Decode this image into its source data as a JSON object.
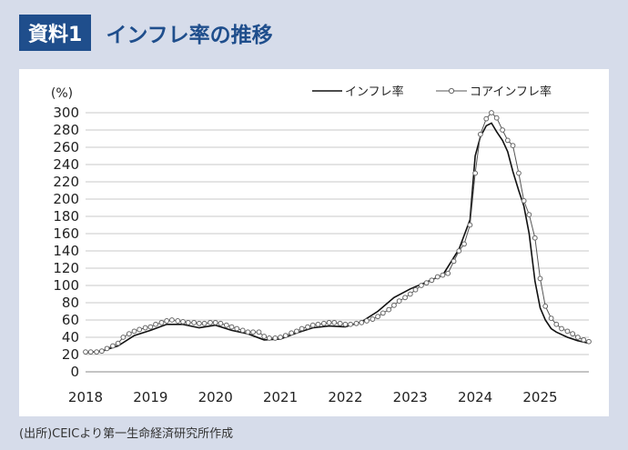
{
  "header": {
    "badge": "資料1",
    "title": "インフレ率の推移"
  },
  "source_note": "(出所)CEICより第一生命経済研究所作成",
  "colors": {
    "background": "#d6dcea",
    "accent": "#1f4e8c",
    "panel": "#ffffff",
    "series_line": "#222222",
    "marker_fill": "#ffffff"
  },
  "chart_data": {
    "type": "line",
    "ylabel": "(%)",
    "ylim": [
      0,
      300
    ],
    "yticks": [
      0,
      20,
      40,
      60,
      80,
      100,
      120,
      140,
      160,
      180,
      200,
      220,
      240,
      260,
      280,
      300
    ],
    "xlim": [
      2018,
      2025.75
    ],
    "xticks": [
      "2018",
      "2019",
      "2020",
      "2021",
      "2022",
      "2023",
      "2024",
      "2025"
    ],
    "grid": true,
    "legend_position": "top-right",
    "series": [
      {
        "name": "インフレ率",
        "style": "line",
        "x": [
          2018.0,
          2018.25,
          2018.5,
          2018.75,
          2019.0,
          2019.25,
          2019.5,
          2019.75,
          2020.0,
          2020.25,
          2020.5,
          2020.75,
          2021.0,
          2021.25,
          2021.5,
          2021.75,
          2022.0,
          2022.25,
          2022.5,
          2022.75,
          2023.0,
          2023.25,
          2023.5,
          2023.75,
          2023.92,
          2024.0,
          2024.08,
          2024.17,
          2024.25,
          2024.33,
          2024.42,
          2024.5,
          2024.58,
          2024.67,
          2024.75,
          2024.83,
          2024.92,
          2025.0,
          2025.08,
          2025.17,
          2025.25,
          2025.42,
          2025.58,
          2025.75
        ],
        "values": [
          22,
          24,
          30,
          42,
          48,
          55,
          55,
          51,
          54,
          48,
          44,
          37,
          38,
          45,
          51,
          53,
          52,
          58,
          70,
          86,
          96,
          104,
          112,
          142,
          176,
          250,
          272,
          285,
          288,
          278,
          268,
          255,
          232,
          210,
          192,
          160,
          105,
          74,
          60,
          50,
          46,
          40,
          36,
          33
        ]
      },
      {
        "name": "コアインフレ率",
        "style": "line-marker",
        "x": [
          2018.0,
          2018.08,
          2018.17,
          2018.25,
          2018.33,
          2018.42,
          2018.5,
          2018.58,
          2018.67,
          2018.75,
          2018.83,
          2018.92,
          2019.0,
          2019.08,
          2019.17,
          2019.25,
          2019.33,
          2019.42,
          2019.5,
          2019.58,
          2019.67,
          2019.75,
          2019.83,
          2019.92,
          2020.0,
          2020.08,
          2020.17,
          2020.25,
          2020.33,
          2020.42,
          2020.5,
          2020.58,
          2020.67,
          2020.75,
          2020.83,
          2020.92,
          2021.0,
          2021.08,
          2021.17,
          2021.25,
          2021.33,
          2021.42,
          2021.5,
          2021.58,
          2021.67,
          2021.75,
          2021.83,
          2021.92,
          2022.0,
          2022.08,
          2022.17,
          2022.25,
          2022.33,
          2022.42,
          2022.5,
          2022.58,
          2022.67,
          2022.75,
          2022.83,
          2022.92,
          2023.0,
          2023.08,
          2023.17,
          2023.25,
          2023.33,
          2023.42,
          2023.5,
          2023.58,
          2023.67,
          2023.75,
          2023.83,
          2023.92,
          2024.0,
          2024.08,
          2024.17,
          2024.25,
          2024.33,
          2024.42,
          2024.5,
          2024.58,
          2024.67,
          2024.75,
          2024.83,
          2024.92,
          2025.0,
          2025.08,
          2025.17,
          2025.25,
          2025.33,
          2025.42,
          2025.5,
          2025.58,
          2025.67,
          2025.75
        ],
        "values": [
          23,
          23,
          23,
          24,
          27,
          30,
          33,
          40,
          44,
          47,
          49,
          51,
          52,
          55,
          57,
          59,
          60,
          59,
          58,
          57,
          57,
          56,
          56,
          57,
          57,
          56,
          54,
          52,
          50,
          48,
          46,
          46,
          46,
          41,
          39,
          39,
          40,
          42,
          45,
          47,
          50,
          52,
          54,
          55,
          56,
          57,
          57,
          56,
          55,
          55,
          56,
          57,
          59,
          61,
          64,
          68,
          72,
          77,
          82,
          86,
          90,
          95,
          100,
          103,
          106,
          110,
          112,
          114,
          128,
          140,
          148,
          170,
          230,
          275,
          293,
          300,
          294,
          280,
          268,
          262,
          230,
          198,
          182,
          155,
          108,
          76,
          62,
          55,
          50,
          47,
          44,
          40,
          37,
          35
        ]
      }
    ]
  }
}
